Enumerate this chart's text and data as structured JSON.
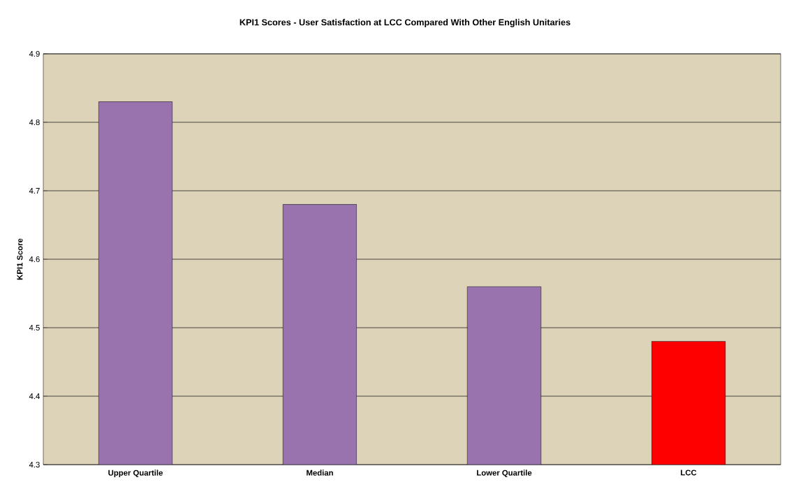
{
  "chart_data": {
    "type": "bar",
    "title": "KPI1 Scores - User Satisfaction at LCC Compared With Other English Unitaries",
    "ylabel": "KPI1 Score",
    "categories": [
      "Upper Quartile",
      "Median",
      "Lower Quartile",
      "LCC"
    ],
    "values": [
      4.83,
      4.68,
      4.56,
      4.48
    ],
    "colors": [
      "#9973ae",
      "#9973ae",
      "#9973ae",
      "#ff0000"
    ],
    "ylim": [
      4.3,
      4.9
    ],
    "yticks": [
      4.3,
      4.4,
      4.5,
      4.6,
      4.7,
      4.8,
      4.9
    ],
    "grid": "y"
  }
}
